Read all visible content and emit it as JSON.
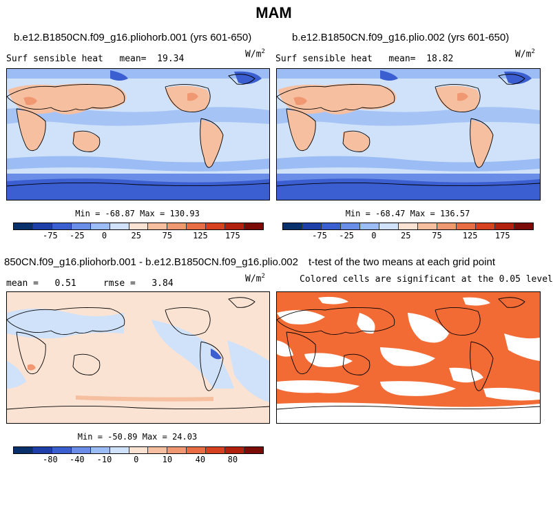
{
  "chart_data": {
    "type": "heatmap",
    "title": "MAM",
    "palette": [
      "#08306b",
      "#1f3fa8",
      "#3b5fd0",
      "#6a8ee8",
      "#9bbcf4",
      "#cfe2f9",
      "#fbe3d4",
      "#f6bfa0",
      "#f09872",
      "#e86d45",
      "#d6421f",
      "#b2200e",
      "#7a0b06"
    ],
    "panels": [
      {
        "case": "b.e12.B1850CN.f09_g16.pliohorb.001 (yrs 601-650)",
        "variable": "Surf sensible heat",
        "stat_label": "mean=",
        "stat_value": "19.34",
        "units_base": "W/m",
        "units_exp": "2",
        "minmax": "Min = -68.87 Max = 130.93",
        "min": -68.87,
        "max": 130.93,
        "colorbar_ticks": [
          "-75",
          "-25",
          "0",
          "25",
          "75",
          "125",
          "175"
        ]
      },
      {
        "case": "b.e12.B1850CN.f09_g16.plio.002 (yrs 601-650)",
        "variable": "Surf sensible heat",
        "stat_label": "mean=",
        "stat_value": "18.82",
        "units_base": "W/m",
        "units_exp": "2",
        "minmax": "Min = -68.47 Max = 136.57",
        "min": -68.47,
        "max": 136.57,
        "colorbar_ticks": [
          "-75",
          "-25",
          "0",
          "25",
          "75",
          "125",
          "175"
        ]
      },
      {
        "case": "850CN.f09_g16.pliohorb.001 - b.e12.B1850CN.f09_g16.plio.002",
        "stat_label": "mean =",
        "stat_value": "0.51",
        "rmse_label": "rmse =",
        "rmse_value": "3.84",
        "units_base": "W/m",
        "units_exp": "2",
        "minmax": "Min = -50.89 Max = 24.03",
        "min": -50.89,
        "max": 24.03,
        "colorbar_ticks": [
          "-80",
          "-40",
          "-10",
          "0",
          "10",
          "40",
          "80"
        ]
      },
      {
        "case": "t-test of the two means at each grid point",
        "subtitle": "Colored cells are significant at the 0.05 level",
        "significance_color": "#f26b35"
      }
    ]
  }
}
